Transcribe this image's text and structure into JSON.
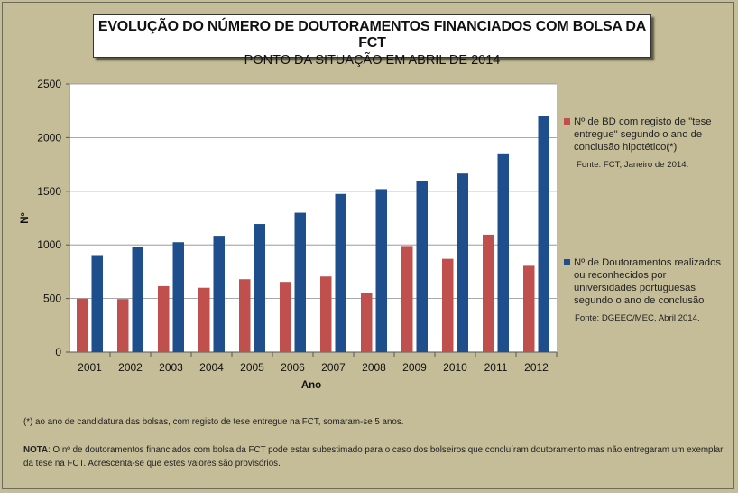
{
  "title": {
    "line1": "EVOLUÇÃO DO NÚMERO DE DOUTORAMENTOS FINANCIADOS COM BOLSA DA FCT",
    "line2": "PONTO DA SITUAÇÃO EM ABRIL DE 2014"
  },
  "colors": {
    "background": "#c4bd97",
    "plot_area": "#ffffff",
    "series_red": "#c0504d",
    "series_blue": "#1f4e8c"
  },
  "chart_data": {
    "type": "bar",
    "xlabel": "Ano",
    "ylabel": "Nº",
    "ylim": [
      0,
      2500
    ],
    "yticks": [
      0,
      500,
      1000,
      1500,
      2000,
      2500
    ],
    "grid": "horizontal",
    "legend_position": "right",
    "categories": [
      "2001",
      "2002",
      "2003",
      "2004",
      "2005",
      "2006",
      "2007",
      "2008",
      "2009",
      "2010",
      "2011",
      "2012"
    ],
    "series": [
      {
        "name": "Nº de BD com registo de \"tese entregue\" segundo o ano de conclusão hipotético(*)",
        "source": "Fonte: FCT, Janeiro de 2014.",
        "color": "#c0504d",
        "values": [
          500,
          495,
          615,
          600,
          680,
          655,
          705,
          555,
          990,
          870,
          1095,
          805
        ]
      },
      {
        "name": "Nº de Doutoramentos realizados ou reconhecidos por universidades portuguesas segundo o ano de conclusão",
        "source": "Fonte: DGEEC/MEC, Abril 2014.",
        "color": "#1f4e8c",
        "values": [
          905,
          985,
          1025,
          1085,
          1195,
          1300,
          1475,
          1520,
          1595,
          1665,
          1845,
          2205
        ]
      }
    ]
  },
  "footnote": "(*) ao ano de candidatura das bolsas, com registo de tese entregue na FCT, somaram-se 5 anos.",
  "note": {
    "label": "NOTA",
    "text": ": O nº de doutoramentos financiados com bolsa da FCT pode estar subestimado para o caso dos bolseiros que concluíram doutoramento mas não entregaram um exemplar da tese na FCT. Acrescenta-se que estes  valores são provisórios."
  }
}
